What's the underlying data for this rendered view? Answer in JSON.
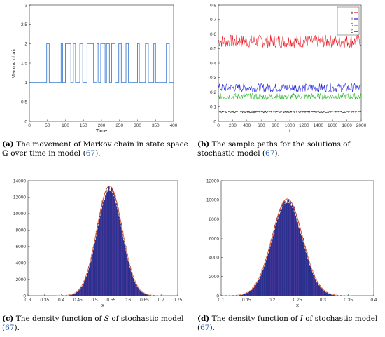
{
  "chart_data": [
    {
      "panel": "a",
      "type": "line",
      "ylabel": "Markov chain",
      "xlabel": "Time",
      "xlim": [
        0,
        400
      ],
      "ylim": [
        0,
        3
      ],
      "x_ticks": [
        "0",
        "50",
        "100",
        "150",
        "200",
        "250",
        "300",
        "350",
        "400"
      ],
      "y_ticks": [
        "0",
        "0.5",
        "1",
        "1.5",
        "2",
        "2.5",
        "3"
      ],
      "step_path": [
        [
          0,
          1
        ],
        [
          48,
          1
        ],
        [
          48,
          2
        ],
        [
          55,
          2
        ],
        [
          55,
          1
        ],
        [
          88,
          1
        ],
        [
          88,
          2
        ],
        [
          92,
          2
        ],
        [
          92,
          1
        ],
        [
          100,
          1
        ],
        [
          100,
          2
        ],
        [
          115,
          2
        ],
        [
          115,
          1
        ],
        [
          122,
          1
        ],
        [
          122,
          2
        ],
        [
          128,
          2
        ],
        [
          128,
          1
        ],
        [
          140,
          1
        ],
        [
          140,
          2
        ],
        [
          148,
          2
        ],
        [
          148,
          1
        ],
        [
          160,
          1
        ],
        [
          160,
          2
        ],
        [
          178,
          2
        ],
        [
          178,
          1
        ],
        [
          188,
          1
        ],
        [
          188,
          2
        ],
        [
          192,
          2
        ],
        [
          192,
          1
        ],
        [
          198,
          1
        ],
        [
          198,
          2
        ],
        [
          210,
          2
        ],
        [
          210,
          1
        ],
        [
          214,
          1
        ],
        [
          214,
          2
        ],
        [
          222,
          2
        ],
        [
          222,
          1
        ],
        [
          228,
          1
        ],
        [
          228,
          2
        ],
        [
          238,
          2
        ],
        [
          238,
          1
        ],
        [
          248,
          1
        ],
        [
          248,
          2
        ],
        [
          255,
          2
        ],
        [
          255,
          1
        ],
        [
          268,
          1
        ],
        [
          268,
          2
        ],
        [
          275,
          2
        ],
        [
          275,
          1
        ],
        [
          300,
          1
        ],
        [
          300,
          2
        ],
        [
          305,
          2
        ],
        [
          305,
          1
        ],
        [
          322,
          1
        ],
        [
          322,
          2
        ],
        [
          330,
          2
        ],
        [
          330,
          1
        ],
        [
          345,
          1
        ],
        [
          345,
          2
        ],
        [
          350,
          2
        ],
        [
          350,
          1
        ],
        [
          380,
          1
        ],
        [
          380,
          2
        ],
        [
          388,
          2
        ],
        [
          388,
          1
        ],
        [
          400,
          1
        ]
      ],
      "caption_label": "(a)",
      "caption_text": "The movement of Markov chain in state space 𝔾 over time in model (",
      "caption_ref": "67",
      "caption_end": ")."
    },
    {
      "panel": "b",
      "type": "line",
      "xlabel": "t",
      "xlim": [
        0,
        2000
      ],
      "ylim": [
        0,
        0.8
      ],
      "x_ticks": [
        "0",
        "200",
        "400",
        "600",
        "800",
        "1000",
        "1200",
        "1400",
        "1600",
        "1800",
        "2000"
      ],
      "y_ticks": [
        "0",
        "0.1",
        "0.2",
        "0.3",
        "0.4",
        "0.5",
        "0.6",
        "0.7",
        "0.8"
      ],
      "series": [
        {
          "name": "S",
          "mean": 0.55,
          "amplitude": 0.045,
          "color": "#e8101a"
        },
        {
          "name": "I",
          "mean": 0.23,
          "amplitude": 0.03,
          "color": "#1a1adc"
        },
        {
          "name": "R",
          "mean": 0.17,
          "amplitude": 0.022,
          "color": "#1fb31f"
        },
        {
          "name": "C",
          "mean": 0.065,
          "amplitude": 0.006,
          "color": "#111111"
        }
      ],
      "legend_position": "top-right",
      "caption_label": "(b)",
      "caption_text": "The sample paths for the solutions of stochastic model (",
      "caption_ref": "67",
      "caption_end": ")."
    },
    {
      "panel": "c",
      "type": "bar",
      "xlabel": "x",
      "xlim": [
        0.3,
        0.75
      ],
      "ylim": [
        0,
        14000
      ],
      "x_ticks": [
        "0.3",
        "0.35",
        "0.4",
        "0.45",
        "0.5",
        "0.55",
        "0.6",
        "0.65",
        "0.7",
        "0.75"
      ],
      "y_ticks": [
        "0",
        "2000",
        "4000",
        "6000",
        "8000",
        "10000",
        "12000",
        "14000"
      ],
      "histogram": {
        "mean": 0.545,
        "sd": 0.038,
        "peak": 13100
      },
      "caption_label": "(c)",
      "caption_text": "The density function of ",
      "caption_var": "S",
      "caption_after": " of stochastic model (",
      "caption_ref": "67",
      "caption_end": ")."
    },
    {
      "panel": "d",
      "type": "bar",
      "xlabel": "x",
      "xlim": [
        0.1,
        0.4
      ],
      "ylim": [
        0,
        12000
      ],
      "x_ticks": [
        "0.1",
        "0.15",
        "0.2",
        "0.25",
        "0.3",
        "0.35",
        "0.4"
      ],
      "y_ticks": [
        "0",
        "2000",
        "4000",
        "6000",
        "8000",
        "10000",
        "12000"
      ],
      "histogram": {
        "mean": 0.23,
        "sd": 0.03,
        "peak": 9900
      },
      "caption_label": "(d)",
      "caption_text": "The density function of ",
      "caption_var": "I",
      "caption_after": " of stochastic model (",
      "caption_ref": "67",
      "caption_end": ")."
    }
  ],
  "colors": {
    "step_line": "#3e7ed2",
    "hist_fill": "#2b2f8e",
    "hist_edge": "#6a3aa0",
    "fit_curve": "#d4522a",
    "ref_link": "#2b5fb3"
  }
}
